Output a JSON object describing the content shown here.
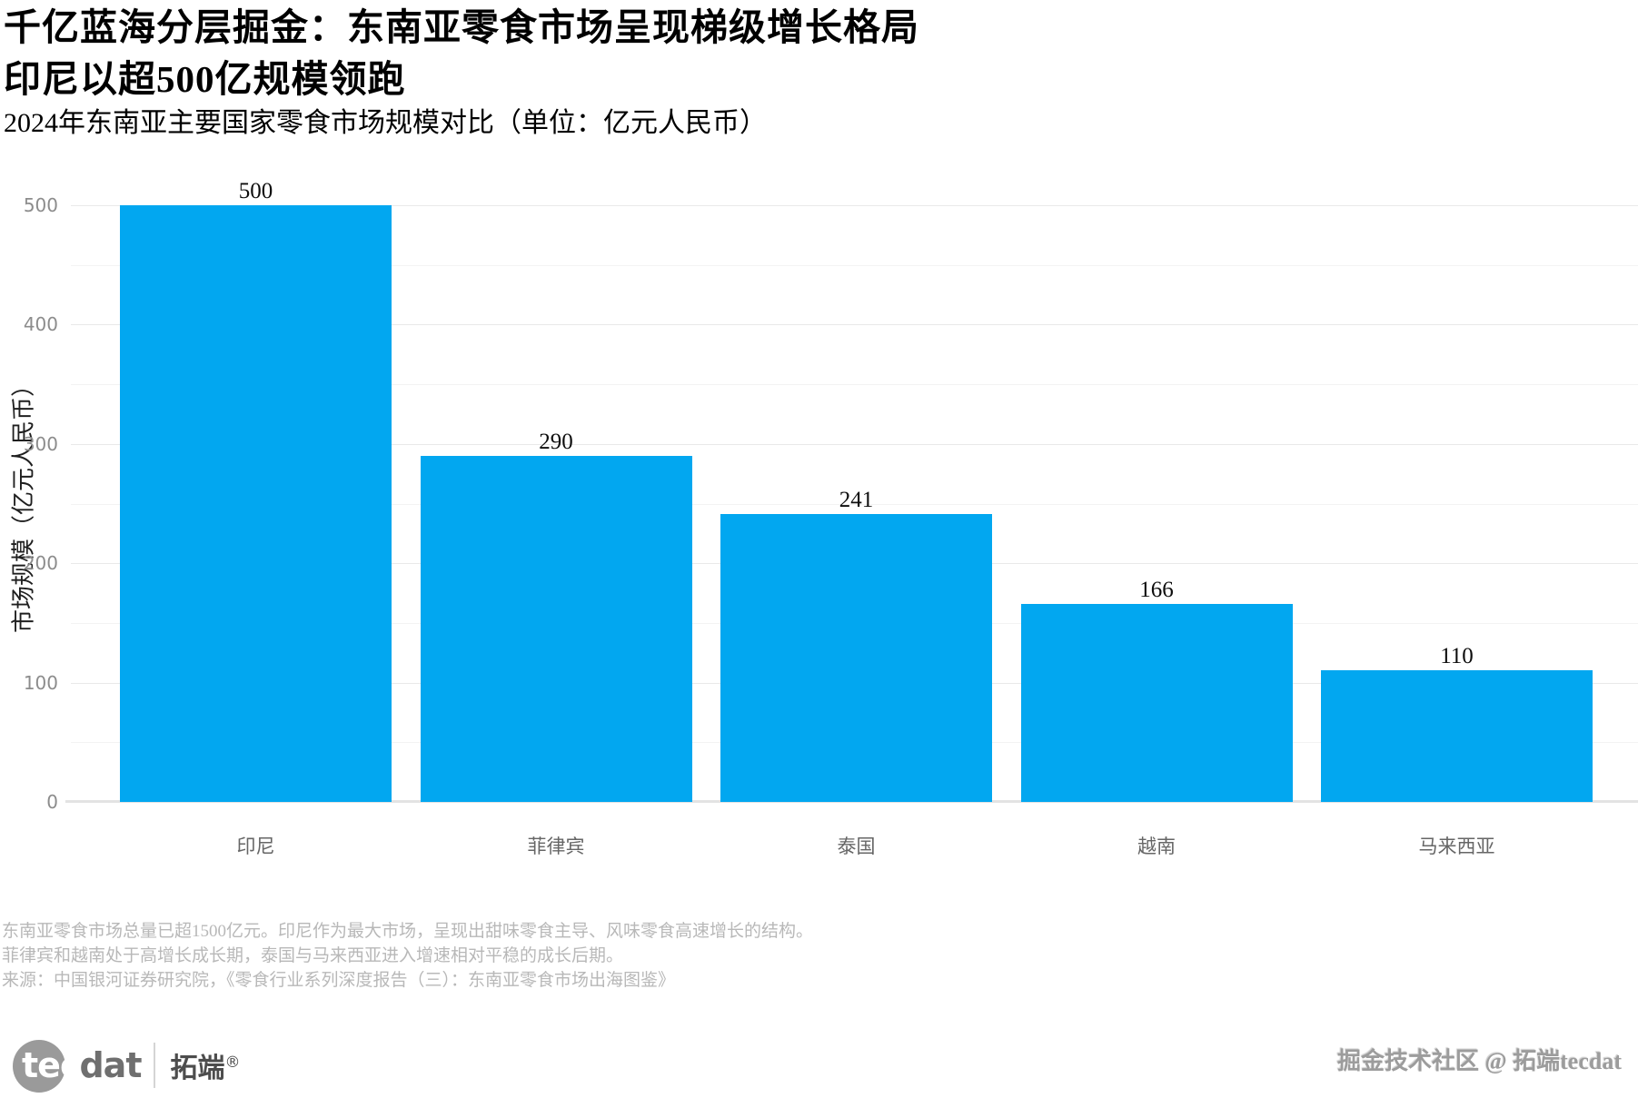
{
  "title": {
    "line1": "千亿蓝海分层掘金：东南亚零食市场呈现梯级增长格局",
    "line2": "印尼以超500亿规模领跑"
  },
  "subtitle": "2024年东南亚主要国家零食市场规模对比（单位：亿元人民币）",
  "chart_data": {
    "type": "bar",
    "title": "2024年东南亚主要国家零食市场规模对比（单位：亿元人民币）",
    "categories": [
      "印尼",
      "菲律宾",
      "泰国",
      "越南",
      "马来西亚"
    ],
    "values": [
      500,
      290,
      241,
      166,
      110
    ],
    "xlabel": "",
    "ylabel": "市场规模（亿元人民币）",
    "ylim": [
      0,
      500
    ],
    "yticks": [
      0,
      100,
      200,
      300,
      400,
      500
    ],
    "grid_step": 50,
    "grid": true,
    "legend": false,
    "bar_color": "#02A7F0",
    "value_label_color": "#0d0d0d",
    "tick_label_color": "#8c8c8c"
  },
  "notes": [
    "东南亚零食市场总量已超1500亿元。印尼作为最大市场，呈现出甜味零食主导、风味零食高速增长的结构。",
    "菲律宾和越南处于高增长成长期，泰国与马来西亚进入增速相对平稳的成长后期。",
    "来源：中国银河证券研究院，《零食行业系列深度报告（三）：东南亚零食市场出海图鉴》"
  ],
  "footer": {
    "logo_tec": "tec",
    "logo_dat": "dat",
    "logo_cn": "拓端",
    "logo_reg": "®",
    "watermark": "掘金技术社区 @ 拓端tecdat"
  }
}
